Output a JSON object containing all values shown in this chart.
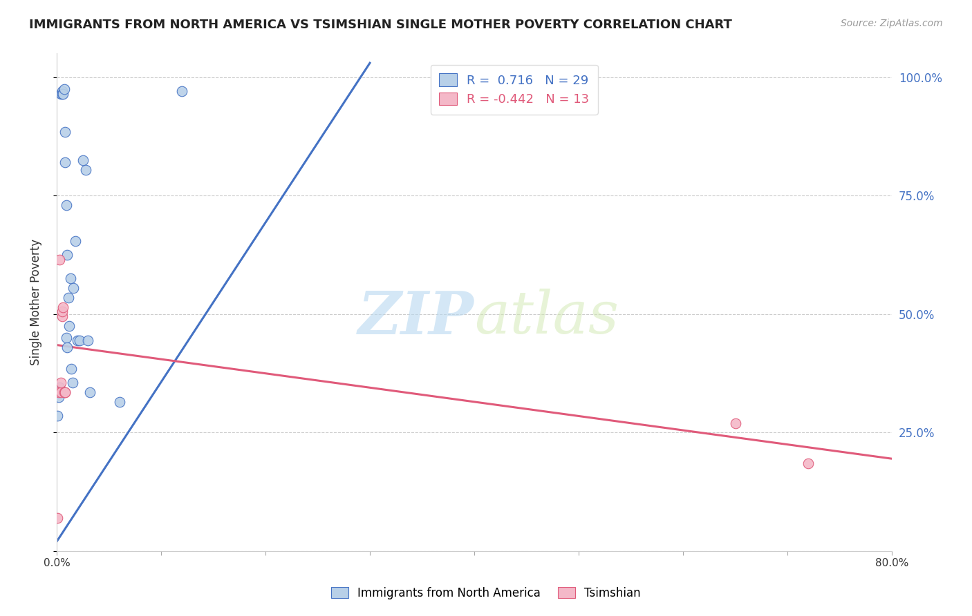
{
  "title": "IMMIGRANTS FROM NORTH AMERICA VS TSIMSHIAN SINGLE MOTHER POVERTY CORRELATION CHART",
  "source": "Source: ZipAtlas.com",
  "ylabel": "Single Mother Poverty",
  "blue_R": 0.716,
  "blue_N": 29,
  "pink_R": -0.442,
  "pink_N": 13,
  "blue_scatter_x": [
    0.001,
    0.002,
    0.003,
    0.004,
    0.005,
    0.005,
    0.006,
    0.007,
    0.008,
    0.008,
    0.009,
    0.009,
    0.01,
    0.01,
    0.011,
    0.012,
    0.013,
    0.014,
    0.015,
    0.016,
    0.018,
    0.02,
    0.022,
    0.025,
    0.028,
    0.03,
    0.032,
    0.06,
    0.12
  ],
  "blue_scatter_y": [
    0.285,
    0.325,
    0.345,
    0.965,
    0.97,
    0.965,
    0.965,
    0.975,
    0.885,
    0.82,
    0.73,
    0.45,
    0.43,
    0.625,
    0.535,
    0.475,
    0.575,
    0.385,
    0.355,
    0.555,
    0.655,
    0.445,
    0.445,
    0.825,
    0.805,
    0.445,
    0.335,
    0.315,
    0.97
  ],
  "pink_scatter_x": [
    0.001,
    0.002,
    0.003,
    0.004,
    0.004,
    0.005,
    0.005,
    0.006,
    0.007,
    0.008,
    0.008,
    0.65,
    0.72
  ],
  "pink_scatter_y": [
    0.07,
    0.335,
    0.615,
    0.335,
    0.355,
    0.495,
    0.505,
    0.515,
    0.335,
    0.335,
    0.335,
    0.27,
    0.185
  ],
  "blue_line_x": [
    0.0,
    0.3
  ],
  "blue_line_y": [
    0.02,
    1.03
  ],
  "pink_line_x": [
    0.0,
    0.8
  ],
  "pink_line_y": [
    0.435,
    0.195
  ],
  "xlim": [
    0.0,
    0.8
  ],
  "ylim": [
    0.0,
    1.05
  ],
  "watermark_zip": "ZIP",
  "watermark_atlas": "atlas",
  "scatter_size": 110,
  "blue_color": "#b8d0e8",
  "blue_line_color": "#4472c4",
  "pink_color": "#f4b8c8",
  "pink_line_color": "#e05a7a",
  "grid_color": "#cccccc",
  "right_yticks": [
    0.0,
    0.25,
    0.5,
    0.75,
    1.0
  ],
  "right_yticklabels": [
    "",
    "25.0%",
    "50.0%",
    "75.0%",
    "100.0%"
  ],
  "xtick_positions": [
    0.0,
    0.1,
    0.2,
    0.3,
    0.4,
    0.5,
    0.6,
    0.7,
    0.8
  ],
  "xtick_labels": [
    "0.0%",
    "",
    "",
    "",
    "",
    "",
    "",
    "",
    "80.0%"
  ]
}
